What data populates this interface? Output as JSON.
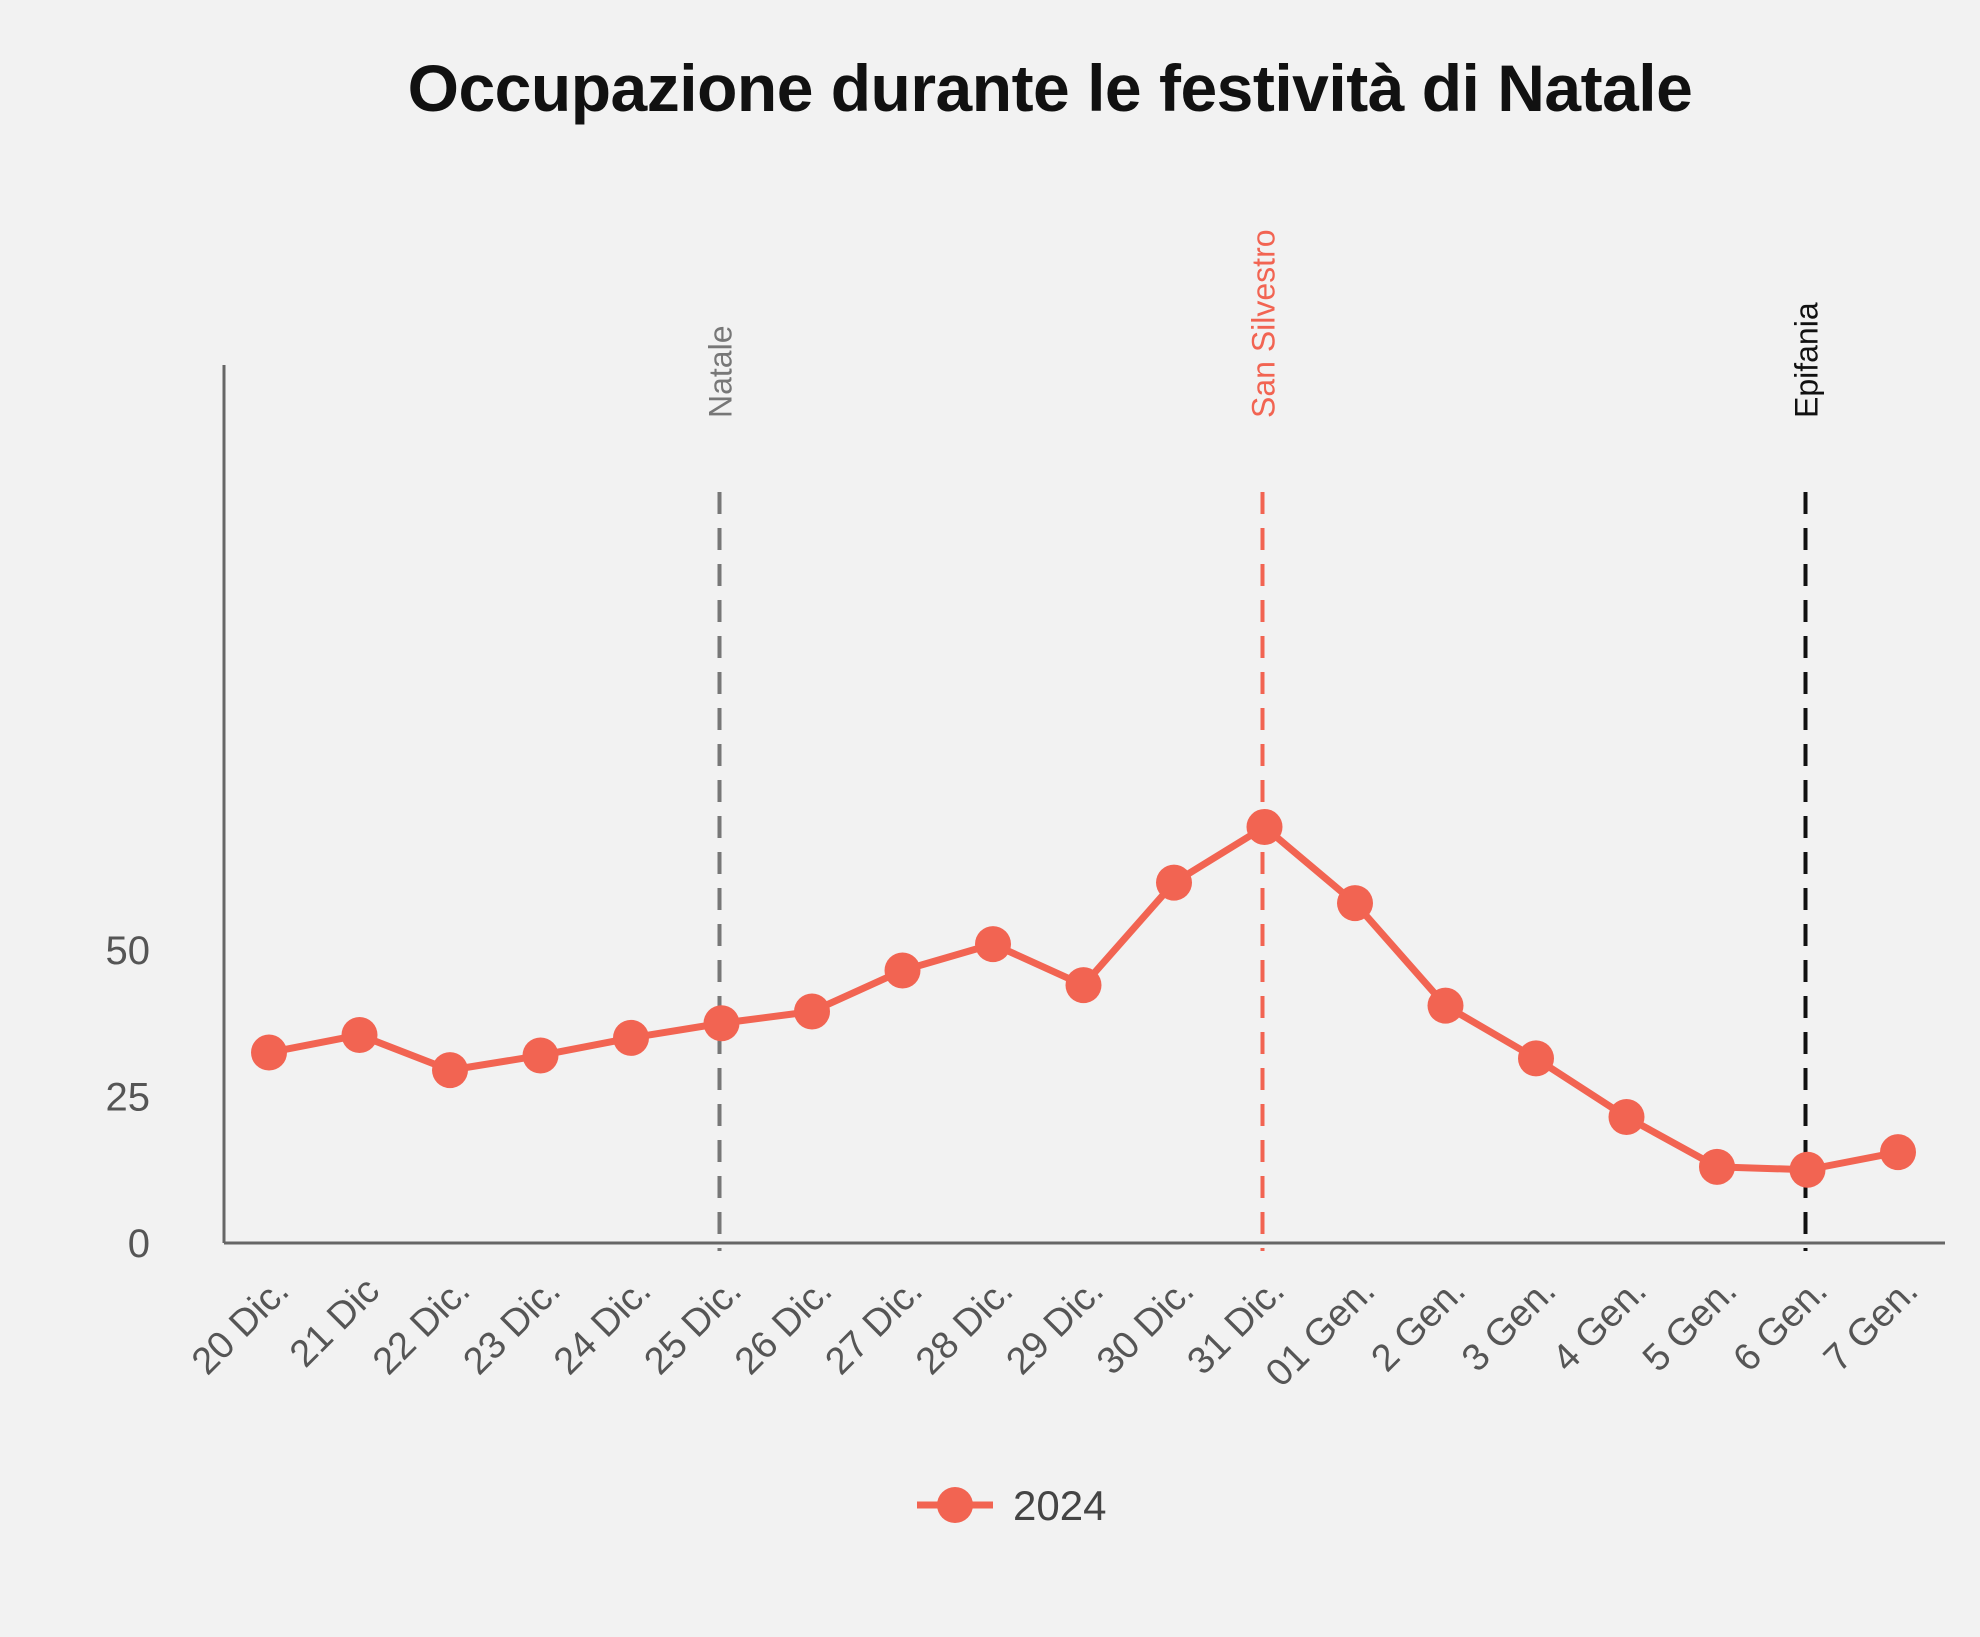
{
  "chart_data": {
    "type": "line",
    "title": "Occupazione durante le festività di Natale",
    "xlabel": "",
    "ylabel": "",
    "ylim": [
      0,
      75
    ],
    "yticks": [
      0,
      25,
      50
    ],
    "grid": false,
    "legend_position": "bottom-center",
    "categories": [
      "20 Dic.",
      "21 Dic",
      "22 Dic.",
      "23 Dic.",
      "24 Dic.",
      "25 Dic.",
      "26 Dic.",
      "27 Dic.",
      "28 Dic.",
      "29 Dic.",
      "30 Dic.",
      "31 Dic.",
      "01 Gen.",
      "2 Gen.",
      "3 Gen.",
      "4 Gen.",
      "5 Gen.",
      "6 Gen.",
      "7 Gen."
    ],
    "series": [
      {
        "name": "2024",
        "color": "#f26452",
        "values": [
          32.5,
          35.5,
          29.5,
          32,
          35,
          37.5,
          39.5,
          46.5,
          51,
          44,
          61.5,
          71,
          58,
          40.5,
          31.5,
          21.5,
          13,
          12.5,
          15.5
        ]
      }
    ],
    "annotations": [
      {
        "label": "Natale",
        "at_category": "25 Dic.",
        "color": "#777777"
      },
      {
        "label": "San Silvestro",
        "at_category": "31 Dic.",
        "color": "#f26452"
      },
      {
        "label": "Epifania",
        "at_category": "6 Gen.",
        "color": "#111111"
      }
    ]
  }
}
